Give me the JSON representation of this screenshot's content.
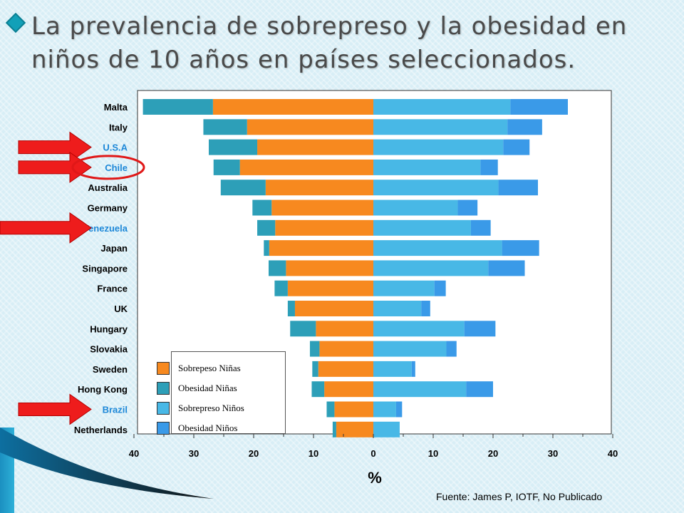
{
  "slide": {
    "title_line1": "La prevalencia de sobrepreso y la obesidad en",
    "title_line2": "niños de 10 años en países seleccionados.",
    "source": "Fuente: James P, IOTF,  No Publicado"
  },
  "colors": {
    "sobrepeso_ninas": "#f7891f",
    "obesidad_ninas": "#2d9fb8",
    "sobrepeso_ninos": "#48b8e6",
    "obesidad_ninos": "#3a9ae8",
    "highlight_text": "#1e88d8",
    "arrow": "#ee1c1c",
    "circle": "#e01818"
  },
  "legend": {
    "items": [
      {
        "label": "Sobrepeso Niñas",
        "color": "#f7891f"
      },
      {
        "label": "Obesidad Niñas",
        "color": "#2d9fb8"
      },
      {
        "label": "Sobrepreso Niños",
        "color": "#48b8e6"
      },
      {
        "label": "Obesidad Niños",
        "color": "#3a9ae8"
      }
    ]
  },
  "annotations": {
    "arrows_point_to": [
      "U.S.A",
      "Chile",
      "Venezuela",
      "Brazil"
    ],
    "circled": "Chile"
  },
  "chart_data": {
    "type": "bar",
    "orientation": "horizontal-diverging",
    "title": "La prevalencia de sobrepreso y la obesidad en niños de 10 años en países seleccionados.",
    "xlabel": "%",
    "xlim": [
      -40,
      40
    ],
    "xticks": [
      -40,
      -30,
      -20,
      -10,
      0,
      10,
      20,
      30,
      40
    ],
    "xtick_labels": [
      "40",
      "30",
      "20",
      "10",
      "0",
      "10",
      "20",
      "30",
      "40"
    ],
    "categories": [
      "Malta",
      "Italy",
      "U.S.A",
      "Chile",
      "Australia",
      "Germany",
      "Venezuela",
      "Japan",
      "Singapore",
      "France",
      "UK",
      "Hungary",
      "Slovakia",
      "Sweden",
      "Hong Kong",
      "Brazil",
      "Netherlands"
    ],
    "highlighted": [
      "U.S.A",
      "Chile",
      "Venezuela",
      "Brazil"
    ],
    "series": [
      {
        "name": "Sobrepeso Niñas",
        "side": "left",
        "values": [
          26.8,
          21.1,
          19.4,
          22.3,
          18.0,
          17.0,
          16.4,
          17.4,
          14.6,
          14.3,
          13.1,
          9.6,
          9.0,
          9.2,
          8.2,
          6.5,
          6.2
        ]
      },
      {
        "name": "Obesidad Niñas",
        "side": "left",
        "values": [
          11.7,
          7.3,
          8.1,
          4.4,
          7.5,
          3.2,
          3.0,
          0.9,
          2.9,
          2.2,
          1.2,
          4.3,
          1.6,
          1.0,
          2.1,
          1.3,
          0.6
        ]
      },
      {
        "name": "Sobrepreso Niños",
        "side": "right",
        "values": [
          22.9,
          22.4,
          21.7,
          17.9,
          20.9,
          14.1,
          16.3,
          21.5,
          19.2,
          10.2,
          8.0,
          15.2,
          12.2,
          6.4,
          15.5,
          3.8,
          4.4
        ]
      },
      {
        "name": "Obesidad Niños",
        "side": "right",
        "values": [
          9.6,
          5.8,
          4.4,
          2.9,
          6.6,
          3.3,
          3.3,
          6.2,
          6.1,
          1.9,
          1.5,
          5.2,
          1.7,
          0.6,
          4.5,
          1.0,
          0.0
        ]
      }
    ]
  }
}
